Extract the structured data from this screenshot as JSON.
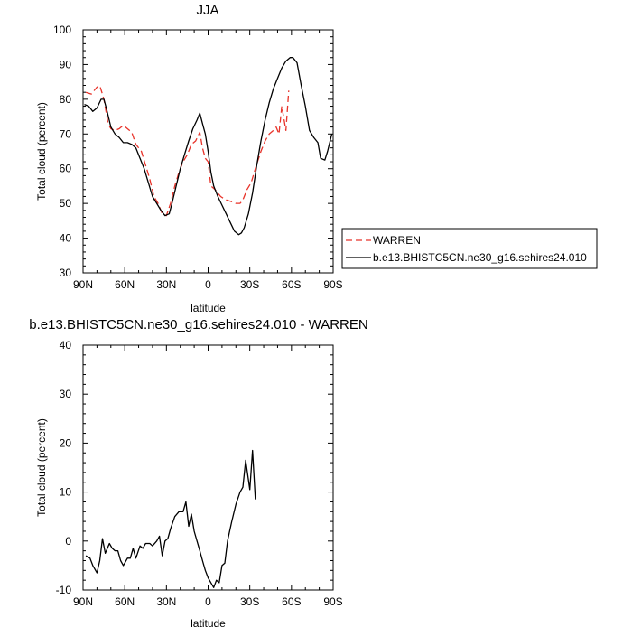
{
  "chart_data": [
    {
      "type": "line",
      "title": "JJA",
      "xlabel": "latitude",
      "ylabel": "Total cloud (percent)",
      "xlim": [
        90,
        -90
      ],
      "ylim": [
        30,
        100
      ],
      "x_ticks": [
        90,
        60,
        30,
        0,
        -30,
        -60,
        -90
      ],
      "x_tick_labels": [
        "90N",
        "60N",
        "30N",
        "0",
        "30S",
        "60S",
        "90S"
      ],
      "y_ticks": [
        30,
        40,
        50,
        60,
        70,
        80,
        90,
        100
      ],
      "y_tick_labels": [
        "30",
        "40",
        "50",
        "60",
        "70",
        "80",
        "90",
        "100"
      ],
      "grid": false,
      "legend_position": "right",
      "series": [
        {
          "name": "WARREN",
          "color": "#e8332a",
          "dash": "dashed",
          "points": [
            [
              88,
              82
            ],
            [
              84,
              81.5
            ],
            [
              80,
              83.5
            ],
            [
              78,
              84
            ],
            [
              75,
              80
            ],
            [
              72,
              73
            ],
            [
              70,
              71.5
            ],
            [
              67,
              71
            ],
            [
              64,
              71.5
            ],
            [
              61,
              72.5
            ],
            [
              58,
              71.5
            ],
            [
              55,
              70.5
            ],
            [
              52,
              67
            ],
            [
              48,
              65
            ],
            [
              45,
              61
            ],
            [
              42,
              57
            ],
            [
              39,
              52
            ],
            [
              36,
              50
            ],
            [
              33,
              47
            ],
            [
              30,
              46.5
            ],
            [
              27,
              50
            ],
            [
              24,
              55
            ],
            [
              21,
              59
            ],
            [
              18,
              62
            ],
            [
              15,
              64
            ],
            [
              12,
              67
            ],
            [
              9,
              68
            ],
            [
              6,
              70.5
            ],
            [
              4,
              66
            ],
            [
              2,
              63
            ],
            [
              0,
              62
            ],
            [
              -2,
              55
            ],
            [
              -5,
              54
            ],
            [
              -9,
              52
            ],
            [
              -13,
              51
            ],
            [
              -17,
              50.5
            ],
            [
              -20,
              50
            ],
            [
              -23,
              50
            ],
            [
              -25,
              51
            ],
            [
              -28,
              54
            ],
            [
              -31,
              56
            ],
            [
              -34,
              60
            ],
            [
              -38,
              65
            ],
            [
              -41,
              68
            ],
            [
              -44,
              70
            ],
            [
              -47,
              71
            ],
            [
              -49,
              72
            ],
            [
              -51,
              70
            ],
            [
              -53,
              78
            ],
            [
              -56,
              71
            ],
            [
              -58,
              82.5
            ]
          ]
        },
        {
          "name": "b.e13.BHISTC5CN.ne30_g16.sehires24.010",
          "color": "#000000",
          "dash": "solid",
          "points": [
            [
              89,
              78.5
            ],
            [
              86,
              78
            ],
            [
              83,
              76.5
            ],
            [
              80,
              77.5
            ],
            [
              77,
              80
            ],
            [
              75,
              80
            ],
            [
              73,
              77
            ],
            [
              70,
              72
            ],
            [
              67,
              70
            ],
            [
              64,
              69
            ],
            [
              61,
              67.5
            ],
            [
              58,
              67.5
            ],
            [
              55,
              67
            ],
            [
              52,
              66
            ],
            [
              49,
              63
            ],
            [
              46,
              60
            ],
            [
              43,
              56
            ],
            [
              40,
              52
            ],
            [
              37,
              50
            ],
            [
              34,
              48
            ],
            [
              31,
              46.5
            ],
            [
              28,
              47
            ],
            [
              26,
              50
            ],
            [
              23,
              55
            ],
            [
              20,
              60
            ],
            [
              17,
              64
            ],
            [
              14,
              68
            ],
            [
              11,
              71.5
            ],
            [
              8,
              74
            ],
            [
              6,
              76
            ],
            [
              4,
              73
            ],
            [
              2,
              70
            ],
            [
              0,
              65
            ],
            [
              -2,
              59
            ],
            [
              -4,
              55
            ],
            [
              -7,
              52
            ],
            [
              -10,
              49.5
            ],
            [
              -13,
              47
            ],
            [
              -16,
              44.5
            ],
            [
              -19,
              42
            ],
            [
              -22,
              41
            ],
            [
              -24,
              41.5
            ],
            [
              -26,
              43
            ],
            [
              -29,
              47
            ],
            [
              -32,
              53
            ],
            [
              -35,
              61
            ],
            [
              -38,
              68
            ],
            [
              -41,
              74
            ],
            [
              -44,
              79
            ],
            [
              -47,
              83
            ],
            [
              -50,
              86
            ],
            [
              -53,
              89
            ],
            [
              -56,
              91
            ],
            [
              -59,
              92
            ],
            [
              -61,
              92
            ],
            [
              -64,
              90.5
            ],
            [
              -67,
              84
            ],
            [
              -70,
              78
            ],
            [
              -73,
              71
            ],
            [
              -76,
              69
            ],
            [
              -79,
              67.5
            ],
            [
              -81,
              63
            ],
            [
              -84,
              62.5
            ],
            [
              -86,
              65
            ],
            [
              -89,
              70
            ]
          ]
        }
      ]
    },
    {
      "type": "line",
      "title": "b.e13.BHISTC5CN.ne30_g16.sehires24.010 - WARREN",
      "xlabel": "latitude",
      "ylabel": "Total cloud (percent)",
      "xlim": [
        90,
        -90
      ],
      "ylim": [
        -10,
        40
      ],
      "x_ticks": [
        90,
        60,
        30,
        0,
        -30,
        -60,
        -90
      ],
      "x_tick_labels": [
        "90N",
        "60N",
        "30N",
        "0",
        "30S",
        "60S",
        "90S"
      ],
      "y_ticks": [
        -10,
        0,
        10,
        20,
        30,
        40
      ],
      "y_tick_labels": [
        "-10",
        "0",
        "10",
        "20",
        "30",
        "40"
      ],
      "grid": false,
      "series": [
        {
          "color": "#000000",
          "dash": "solid",
          "points": [
            [
              88,
              -3
            ],
            [
              85,
              -3.5
            ],
            [
              83,
              -5
            ],
            [
              80,
              -6.5
            ],
            [
              78,
              -4
            ],
            [
              76,
              0.5
            ],
            [
              74,
              -2.5
            ],
            [
              71,
              -0.5
            ],
            [
              69,
              -1.5
            ],
            [
              67,
              -2
            ],
            [
              65,
              -2
            ],
            [
              63,
              -4
            ],
            [
              61,
              -5
            ],
            [
              58,
              -3.5
            ],
            [
              56,
              -3.5
            ],
            [
              54,
              -1.5
            ],
            [
              52,
              -3.5
            ],
            [
              49,
              -1
            ],
            [
              47,
              -1.5
            ],
            [
              45,
              -0.5
            ],
            [
              42,
              -0.5
            ],
            [
              40,
              -1
            ],
            [
              37,
              0
            ],
            [
              35,
              1
            ],
            [
              33,
              -3
            ],
            [
              31,
              0
            ],
            [
              29,
              0.5
            ],
            [
              27,
              2.5
            ],
            [
              24,
              5
            ],
            [
              21,
              6
            ],
            [
              18,
              6
            ],
            [
              16,
              8
            ],
            [
              14,
              3
            ],
            [
              12,
              5.5
            ],
            [
              10,
              2
            ],
            [
              8,
              0
            ],
            [
              6,
              -2
            ],
            [
              4,
              -4
            ],
            [
              2,
              -6
            ],
            [
              0,
              -7.5
            ],
            [
              -2,
              -8.5
            ],
            [
              -4,
              -9.5
            ],
            [
              -6,
              -8
            ],
            [
              -8,
              -8.5
            ],
            [
              -10,
              -5
            ],
            [
              -12,
              -4.5
            ],
            [
              -14,
              0
            ],
            [
              -17,
              4
            ],
            [
              -20,
              7.5
            ],
            [
              -23,
              10
            ],
            [
              -25,
              11
            ],
            [
              -27,
              16.5
            ],
            [
              -30,
              10.5
            ],
            [
              -32,
              18.5
            ],
            [
              -34,
              8.5
            ]
          ]
        }
      ]
    }
  ]
}
